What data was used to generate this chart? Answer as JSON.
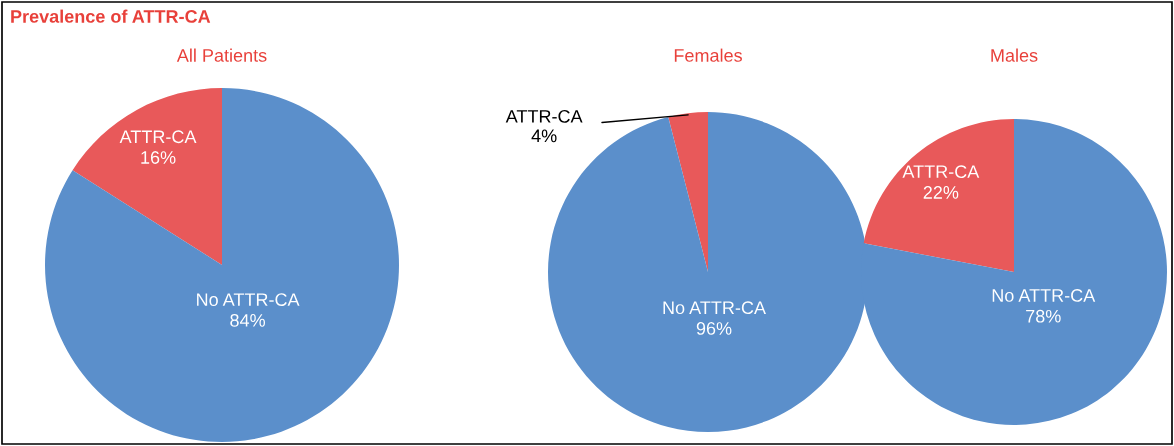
{
  "chart_data": [
    {
      "type": "pie",
      "title": "All Patients",
      "categories": [
        "ATTR-CA",
        "No ATTR-CA"
      ],
      "values": [
        16,
        84
      ],
      "value_labels": [
        "16%",
        "84%"
      ],
      "colors": [
        "#e8595a",
        "#5b8fcb"
      ],
      "legend": false,
      "annotations": [
        "Prevalence of ATTR-CA"
      ]
    },
    {
      "type": "pie",
      "title": "Females",
      "categories": [
        "ATTR-CA",
        "No ATTR-CA"
      ],
      "values": [
        4,
        96
      ],
      "value_labels": [
        "4%",
        "96%"
      ],
      "colors": [
        "#e8595a",
        "#5b8fcb"
      ],
      "legend": false
    },
    {
      "type": "pie",
      "title": "Males",
      "categories": [
        "ATTR-CA",
        "No ATTR-CA"
      ],
      "values": [
        22,
        78
      ],
      "value_labels": [
        "22%",
        "78%"
      ],
      "colors": [
        "#e8595a",
        "#5b8fcb"
      ],
      "legend": false
    }
  ]
}
